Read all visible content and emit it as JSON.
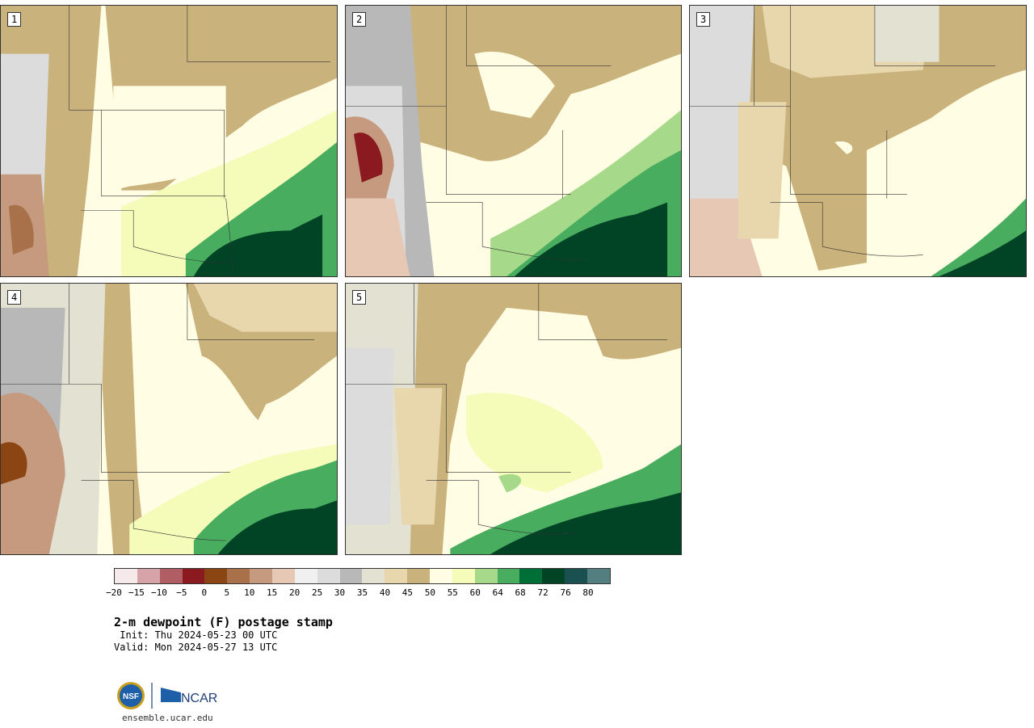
{
  "panels": [
    {
      "label": "1"
    },
    {
      "label": "2"
    },
    {
      "label": "3"
    },
    {
      "label": "4"
    },
    {
      "label": "5"
    }
  ],
  "colorbar": {
    "colors": [
      "#f5e9ea",
      "#d6a3a9",
      "#b05e63",
      "#8a1a1f",
      "#8b4513",
      "#a8714a",
      "#c59a7e",
      "#e6c8b4",
      "#f0f0f0",
      "#dcdcdc",
      "#b8b8b8",
      "#e3e1d1",
      "#e8d6ad",
      "#c9b27c",
      "#fffde4",
      "#f5fbb9",
      "#a7d98a",
      "#49ad5f",
      "#006f37",
      "#004325",
      "#1a5050",
      "#547f80"
    ],
    "ticks": [
      "−20",
      "−15",
      "−10",
      "−5",
      "0",
      "5",
      "10",
      "15",
      "20",
      "25",
      "30",
      "35",
      "40",
      "45",
      "50",
      "55",
      "60",
      "64",
      "68",
      "72",
      "76",
      "80"
    ]
  },
  "title": "2-m dewpoint (F) postage stamp",
  "init": " Init: Thu 2024-05-23 00 UTC",
  "valid": "Valid: Mon 2024-05-27 13 UTC",
  "logos": {
    "nsf": "NSF",
    "ncar": "NCAR"
  },
  "url": "ensemble.ucar.edu"
}
